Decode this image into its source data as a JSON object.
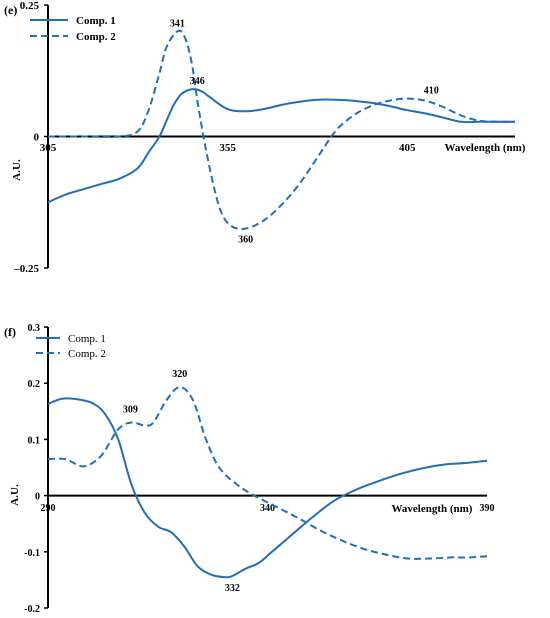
{
  "colors": {
    "series": "#1f6fba",
    "axis": "#000000",
    "background": "#ffffff"
  },
  "chart_data": [
    {
      "panel_label": "(e)",
      "type": "line",
      "xlabel": "Wavelength (nm)",
      "ylabel": "A.U.",
      "xlim": [
        305,
        435
      ],
      "ylim": [
        -0.25,
        0.25
      ],
      "x_ticks": [
        305,
        355,
        405
      ],
      "y_ticks": [
        {
          "value": 0.25,
          "label": "0.25"
        },
        {
          "value": 0,
          "label": "0"
        },
        {
          "value": -0.25,
          "label": "–0.25"
        }
      ],
      "legend": {
        "position": "top-left",
        "bold": true,
        "entries": [
          "Comp. 1",
          "Comp. 2"
        ]
      },
      "series": [
        {
          "name": "Comp. 1",
          "style": "solid",
          "x": [
            305,
            310,
            315,
            320,
            325,
            330,
            333,
            336,
            338,
            340,
            342,
            344,
            346,
            348,
            350,
            355,
            360,
            365,
            370,
            375,
            380,
            385,
            390,
            395,
            400,
            405,
            410,
            415,
            420,
            425,
            430,
            435
          ],
          "y": [
            -0.125,
            -0.11,
            -0.1,
            -0.09,
            -0.08,
            -0.06,
            -0.03,
            0.0,
            0.03,
            0.06,
            0.08,
            0.088,
            0.09,
            0.085,
            0.075,
            0.052,
            0.048,
            0.052,
            0.06,
            0.066,
            0.07,
            0.07,
            0.068,
            0.064,
            0.058,
            0.05,
            0.044,
            0.036,
            0.028,
            0.028,
            0.028,
            0.028
          ]
        },
        {
          "name": "Comp. 2",
          "style": "dashed",
          "x": [
            305,
            315,
            325,
            330,
            333,
            336,
            338,
            341,
            343,
            345,
            347,
            350,
            353,
            356,
            360,
            365,
            370,
            375,
            380,
            385,
            390,
            395,
            400,
            405,
            410,
            415,
            420,
            425,
            430,
            435
          ],
          "y": [
            0.0,
            0.0,
            0.0,
            0.01,
            0.05,
            0.12,
            0.17,
            0.2,
            0.19,
            0.14,
            0.05,
            -0.06,
            -0.14,
            -0.17,
            -0.175,
            -0.16,
            -0.13,
            -0.09,
            -0.04,
            0.01,
            0.04,
            0.058,
            0.068,
            0.072,
            0.068,
            0.056,
            0.04,
            0.03,
            0.028,
            0.028
          ]
        }
      ],
      "annotations": [
        {
          "text": "341",
          "x": 341,
          "y": 0.2
        },
        {
          "text": "346",
          "x": 346,
          "y": 0.09
        },
        {
          "text": "410",
          "x": 410,
          "y": 0.07
        },
        {
          "text": "360",
          "x": 360,
          "y": -0.175
        }
      ]
    },
    {
      "panel_label": "(f)",
      "type": "line",
      "xlabel": "Wavelength (nm)",
      "ylabel": "A.U.",
      "xlim": [
        290,
        390
      ],
      "ylim": [
        -0.2,
        0.3
      ],
      "x_ticks": [
        290,
        340,
        390
      ],
      "y_ticks": [
        {
          "value": 0.3,
          "label": "0.3"
        },
        {
          "value": 0.2,
          "label": "0.2"
        },
        {
          "value": 0.1,
          "label": "0.1"
        },
        {
          "value": 0,
          "label": "0"
        },
        {
          "value": -0.1,
          "label": "-0.1"
        },
        {
          "value": -0.2,
          "label": "-0.2"
        }
      ],
      "legend": {
        "position": "top-left",
        "bold": false,
        "entries": [
          "Comp. 1",
          "Comp. 2"
        ]
      },
      "series": [
        {
          "name": "Comp. 1",
          "style": "solid",
          "x": [
            290,
            293,
            296,
            300,
            303,
            306,
            309,
            312,
            315,
            318,
            321,
            324,
            327,
            330,
            332,
            335,
            338,
            341,
            344,
            347,
            350,
            355,
            360,
            365,
            370,
            375,
            380,
            385,
            390
          ],
          "y": [
            0.163,
            0.172,
            0.172,
            0.165,
            0.145,
            0.1,
            0.02,
            -0.03,
            -0.055,
            -0.065,
            -0.09,
            -0.125,
            -0.14,
            -0.145,
            -0.143,
            -0.13,
            -0.12,
            -0.1,
            -0.08,
            -0.06,
            -0.04,
            -0.01,
            0.01,
            0.025,
            0.038,
            0.048,
            0.055,
            0.058,
            0.062
          ]
        },
        {
          "name": "Comp. 2",
          "style": "dashed",
          "x": [
            290,
            294,
            298,
            302,
            306,
            309,
            312,
            314,
            317,
            320,
            323,
            326,
            329,
            333,
            337,
            342,
            347,
            352,
            357,
            362,
            367,
            372,
            377,
            382,
            386,
            390
          ],
          "y": [
            0.065,
            0.065,
            0.052,
            0.07,
            0.118,
            0.13,
            0.125,
            0.13,
            0.17,
            0.193,
            0.17,
            0.1,
            0.05,
            0.02,
            0.0,
            -0.02,
            -0.04,
            -0.062,
            -0.08,
            -0.095,
            -0.105,
            -0.112,
            -0.112,
            -0.11,
            -0.11,
            -0.108
          ]
        }
      ],
      "annotations": [
        {
          "text": "309",
          "x": 309,
          "y": 0.13
        },
        {
          "text": "320",
          "x": 320,
          "y": 0.193
        },
        {
          "text": "332",
          "x": 332,
          "y": -0.145
        }
      ]
    }
  ]
}
